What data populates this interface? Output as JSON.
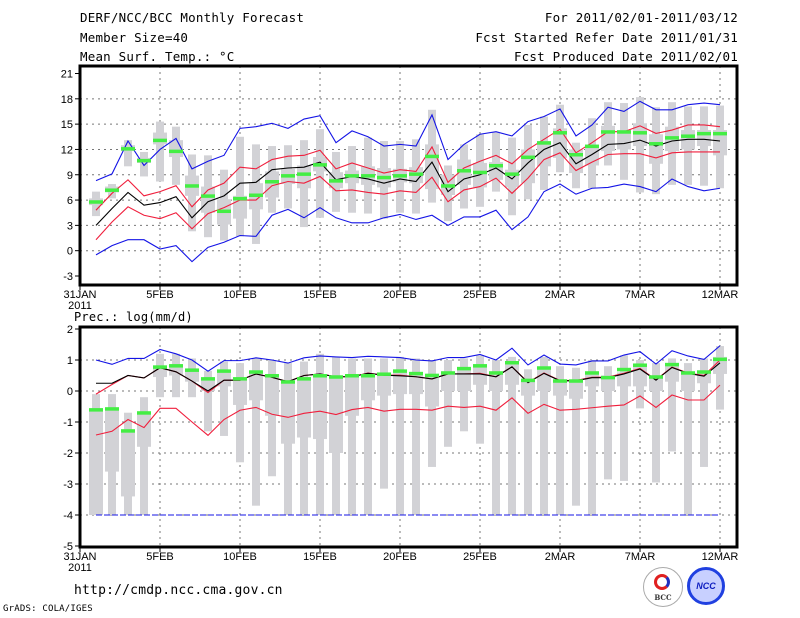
{
  "header": {
    "title": "DERF/NCC/BCC Monthly Forecast",
    "member_size": "Member Size=40",
    "variable": "Mean Surf. Temp.: °C",
    "period": "For 2011/02/01-2011/03/12",
    "start_date": "Fcst Started Refer Date 2011/01/31",
    "produced_date": "Fcst Produced Date 2011/02/01"
  },
  "footer": {
    "url": "http://cmdp.ncc.cma.gov.cn",
    "credit": "GrADS: COLA/IGES",
    "logo_bcc": "BCC",
    "logo_ncc": "NCC"
  },
  "colors": {
    "box": "#d2d2d6",
    "obs": "#44ee44",
    "red": "#f01e3c",
    "blue": "#1414e6",
    "black": "#000000",
    "grid": "#777777"
  },
  "chart_data": [
    {
      "type": "line",
      "title": "Mean Surf. Temp.: °C",
      "xlabel": "",
      "ylabel": "",
      "x_ticks": [
        "31JAN",
        "5FEB",
        "10FEB",
        "15FEB",
        "20FEB",
        "25FEB",
        "2MAR",
        "7MAR",
        "12MAR"
      ],
      "x_year": "2011",
      "ylim": [
        -3,
        21
      ],
      "y_ticks": [
        "-3",
        "0",
        "3",
        "6",
        "9",
        "12",
        "15",
        "18",
        "21"
      ],
      "y_tick_values": [
        -3,
        0,
        3,
        6,
        9,
        12,
        15,
        18,
        21
      ],
      "grid": true,
      "x_days": "1..40 (days after 31JAN)",
      "series": [
        {
          "name": "blue-max",
          "values": [
            8.3,
            9.1,
            13.0,
            10.1,
            12.0,
            13.3,
            9.7,
            10.6,
            11.3,
            14.5,
            14.7,
            15.1,
            14.5,
            15.6,
            16.0,
            12.8,
            14.2,
            13.5,
            12.4,
            12.6,
            12.4,
            16.1,
            10.8,
            12.6,
            13.8,
            14.1,
            13.6,
            15.3,
            15.9,
            16.8,
            13.6,
            14.9,
            17.0,
            16.5,
            17.7,
            16.7,
            16.7,
            17.3,
            17.5,
            17.3
          ]
        },
        {
          "name": "blue-min",
          "values": [
            -0.5,
            0.6,
            1.3,
            1.3,
            0.2,
            0.6,
            -1.3,
            0.4,
            1.0,
            1.8,
            1.7,
            4.2,
            4.9,
            3.9,
            5.1,
            3.9,
            3.3,
            3.3,
            3.9,
            4.3,
            3.7,
            4.2,
            3.0,
            4.0,
            4.0,
            4.8,
            2.5,
            4.0,
            7.0,
            7.9,
            6.7,
            7.4,
            7.5,
            7.9,
            7.6,
            7.0,
            8.5,
            7.6,
            7.1,
            7.4
          ]
        },
        {
          "name": "red-upper",
          "values": [
            4.8,
            6.8,
            8.4,
            6.5,
            7.0,
            7.7,
            5.2,
            7.2,
            8.0,
            9.9,
            9.7,
            10.8,
            11.2,
            11.3,
            11.9,
            9.7,
            10.4,
            9.8,
            9.2,
            9.6,
            9.4,
            12.3,
            8.1,
            9.8,
            10.6,
            11.3,
            10.3,
            12.0,
            13.2,
            14.4,
            11.6,
            12.8,
            14.1,
            14.1,
            14.8,
            13.9,
            14.3,
            14.9,
            14.9,
            14.7
          ]
        },
        {
          "name": "black-mean",
          "values": [
            3.0,
            5.0,
            6.9,
            5.4,
            5.7,
            6.4,
            3.9,
            5.8,
            6.5,
            8.0,
            8.1,
            9.6,
            9.8,
            9.9,
            10.5,
            8.4,
            8.8,
            8.5,
            8.0,
            8.5,
            8.2,
            10.5,
            7.0,
            8.5,
            9.0,
            9.8,
            8.5,
            10.4,
            12.0,
            12.8,
            10.3,
            11.4,
            12.6,
            12.7,
            13.1,
            12.4,
            13.0,
            13.2,
            13.2,
            13.0
          ]
        },
        {
          "name": "red-lower",
          "values": [
            1.3,
            3.4,
            5.2,
            4.2,
            3.8,
            4.5,
            2.6,
            4.4,
            5.1,
            6.0,
            6.0,
            7.7,
            8.2,
            8.0,
            8.8,
            7.1,
            7.2,
            6.9,
            6.7,
            7.1,
            6.9,
            8.7,
            5.8,
            7.2,
            7.6,
            8.6,
            6.8,
            8.6,
            10.8,
            11.6,
            9.5,
            10.5,
            11.4,
            11.5,
            11.5,
            11.0,
            11.6,
            11.7,
            11.7,
            11.7
          ]
        },
        {
          "name": "green-marker",
          "values": [
            5.8,
            7.2,
            12.1,
            10.7,
            13.1,
            11.8,
            7.7,
            6.5,
            4.7,
            6.2,
            6.6,
            8.2,
            8.9,
            9.1,
            10.2,
            8.3,
            8.9,
            8.9,
            8.7,
            8.9,
            9.1,
            11.2,
            7.7,
            9.5,
            9.3,
            10.1,
            9.1,
            11.1,
            12.8,
            14.0,
            11.4,
            12.4,
            14.1,
            14.1,
            14.0,
            12.7,
            13.4,
            13.6,
            13.9,
            13.9
          ]
        }
      ],
      "boxes": [
        [
          4.1,
          5.4,
          6.2,
          7.0
        ],
        [
          6.2,
          6.9,
          7.6,
          7.9
        ],
        [
          10.0,
          11.8,
          12.5,
          13.1
        ],
        [
          8.8,
          10.4,
          11.0,
          11.7
        ],
        [
          8.2,
          12.6,
          14.0,
          15.3
        ],
        [
          7.8,
          11.1,
          13.1,
          14.7
        ],
        [
          2.3,
          6.5,
          8.9,
          11.4
        ],
        [
          1.6,
          4.5,
          7.6,
          11.3
        ],
        [
          1.2,
          3.1,
          6.1,
          9.6
        ],
        [
          1.7,
          3.8,
          6.5,
          13.5
        ],
        [
          0.8,
          4.9,
          8.0,
          12.6
        ],
        [
          4.5,
          6.3,
          9.4,
          12.4
        ],
        [
          5.0,
          7.9,
          9.7,
          12.5
        ],
        [
          2.8,
          7.4,
          10.1,
          13.1
        ],
        [
          3.9,
          9.4,
          11.1,
          14.4
        ],
        [
          4.6,
          7.4,
          9.3,
          11.7
        ],
        [
          4.5,
          8.0,
          9.5,
          12.4
        ],
        [
          4.4,
          7.8,
          10.0,
          13.4
        ],
        [
          3.8,
          7.5,
          9.8,
          13.0
        ],
        [
          4.5,
          8.1,
          9.7,
          13.0
        ],
        [
          4.4,
          8.0,
          9.9,
          13.2
        ],
        [
          5.7,
          7.3,
          12.6,
          16.7
        ],
        [
          3.5,
          6.6,
          9.0,
          10.1
        ],
        [
          5.0,
          7.8,
          10.8,
          12.6
        ],
        [
          5.2,
          7.5,
          10.4,
          13.8
        ],
        [
          7.0,
          8.4,
          10.5,
          14.0
        ],
        [
          4.2,
          7.5,
          9.6,
          13.4
        ],
        [
          6.1,
          8.0,
          12.0,
          14.9
        ],
        [
          7.2,
          10.0,
          13.0,
          15.9
        ],
        [
          9.3,
          11.0,
          14.5,
          17.3
        ],
        [
          7.4,
          9.2,
          12.0,
          12.8
        ],
        [
          7.4,
          10.1,
          12.5,
          15.7
        ],
        [
          10.1,
          11.8,
          14.8,
          17.6
        ],
        [
          8.4,
          12.0,
          14.3,
          17.5
        ],
        [
          6.9,
          12.4,
          15.1,
          18.2
        ],
        [
          6.7,
          10.3,
          13.8,
          17.0
        ],
        [
          7.8,
          11.8,
          14.7,
          17.6
        ],
        [
          7.8,
          12.0,
          14.3,
          17.1
        ],
        [
          7.7,
          12.4,
          14.3,
          17.1
        ],
        [
          7.4,
          11.3,
          14.3,
          17.2
        ]
      ]
    },
    {
      "type": "line",
      "title": "Prec.: log(mm/d)",
      "xlabel": "",
      "ylabel": "",
      "x_ticks": [
        "31JAN",
        "5FEB",
        "10FEB",
        "15FEB",
        "20FEB",
        "25FEB",
        "2MAR",
        "7MAR",
        "12MAR"
      ],
      "x_year": "2011",
      "ylim": [
        -5,
        2
      ],
      "y_ticks": [
        "-5",
        "-4",
        "-3",
        "-2",
        "-1",
        "0",
        "1",
        "2"
      ],
      "y_tick_values": [
        -5,
        -4,
        -3,
        -2,
        -1,
        0,
        1,
        2
      ],
      "grid": true,
      "series": [
        {
          "name": "blue-max",
          "values": [
            1.0,
            0.86,
            1.05,
            1.05,
            1.34,
            1.2,
            1.0,
            0.64,
            0.98,
            0.98,
            1.07,
            1.0,
            0.9,
            1.07,
            1.13,
            1.1,
            1.08,
            1.12,
            1.1,
            1.08,
            1.0,
            0.97,
            1.08,
            1.08,
            1.18,
            1.0,
            1.38,
            0.84,
            1.16,
            0.87,
            0.84,
            0.97,
            0.97,
            1.16,
            1.27,
            0.87,
            1.3,
            1.13,
            1.02,
            1.46
          ]
        },
        {
          "name": "blue-min",
          "values": [
            -4,
            -4,
            -4,
            -4,
            -4,
            -4,
            -4,
            -4,
            -4,
            -4,
            -4,
            -4,
            -4,
            -4,
            -4,
            -4,
            -4,
            -4,
            -4,
            -4,
            -4,
            -4,
            -4,
            -4,
            -4,
            -4,
            -4,
            -4,
            -4,
            -4,
            -4,
            -4,
            -4,
            -4,
            -4,
            -4,
            -4,
            -4,
            -4,
            -4
          ]
        },
        {
          "name": "red-upper",
          "values": [
            -0.1,
            0.21,
            0.5,
            0.42,
            0.75,
            0.62,
            0.32,
            -0.05,
            0.35,
            0.35,
            0.55,
            0.44,
            0.3,
            0.5,
            0.55,
            0.46,
            0.46,
            0.58,
            0.51,
            0.51,
            0.46,
            0.39,
            0.55,
            0.55,
            0.57,
            0.46,
            0.78,
            0.28,
            0.58,
            0.34,
            0.34,
            0.44,
            0.45,
            0.57,
            0.73,
            0.36,
            0.77,
            0.58,
            0.5,
            1.0
          ]
        },
        {
          "name": "black-mean",
          "values": [
            0.25,
            0.25,
            0.5,
            0.42,
            0.75,
            0.62,
            0.32,
            0.0,
            0.35,
            0.35,
            0.55,
            0.44,
            0.3,
            0.5,
            0.55,
            0.46,
            0.46,
            0.57,
            0.51,
            0.49,
            0.46,
            0.39,
            0.55,
            0.55,
            0.55,
            0.46,
            0.78,
            0.27,
            0.57,
            0.33,
            0.33,
            0.43,
            0.43,
            0.55,
            0.71,
            0.35,
            0.76,
            0.57,
            0.48,
            0.91
          ]
        },
        {
          "name": "red-lower",
          "values": [
            -1.42,
            -1.3,
            -0.92,
            -1.18,
            -0.56,
            -0.56,
            -1.0,
            -1.43,
            -0.92,
            -0.62,
            -0.53,
            -0.75,
            -0.85,
            -0.72,
            -0.65,
            -0.76,
            -0.6,
            -0.53,
            -0.65,
            -0.59,
            -0.59,
            -0.62,
            -0.49,
            -0.53,
            -0.49,
            -0.62,
            -0.22,
            -0.72,
            -0.43,
            -0.62,
            -0.59,
            -0.54,
            -0.49,
            -0.45,
            -0.16,
            -0.53,
            -0.13,
            -0.29,
            -0.29,
            0.19
          ]
        },
        {
          "name": "green-marker",
          "values": [
            -0.6,
            -0.57,
            -1.28,
            -0.7,
            0.78,
            0.82,
            0.68,
            0.4,
            0.65,
            0.4,
            0.62,
            0.5,
            0.3,
            0.4,
            0.5,
            0.46,
            0.5,
            0.5,
            0.55,
            0.65,
            0.57,
            0.51,
            0.59,
            0.73,
            0.82,
            0.59,
            0.92,
            0.35,
            0.75,
            0.33,
            0.33,
            0.59,
            0.44,
            0.7,
            0.84,
            0.46,
            0.86,
            0.59,
            0.62,
            1.03
          ]
        }
      ],
      "boxes": [
        [
          -4,
          -4,
          -0.6,
          -0.1
        ],
        [
          -4,
          -2.6,
          -0.6,
          -0.1
        ],
        [
          -4,
          -3.4,
          -1.3,
          -0.7
        ],
        [
          -4,
          -1.8,
          -0.7,
          -0.2
        ],
        [
          -0.2,
          0.45,
          0.75,
          1.2
        ],
        [
          -0.2,
          0.5,
          0.85,
          1.2
        ],
        [
          -0.2,
          0.3,
          0.7,
          1.05
        ],
        [
          -1.3,
          0.0,
          0.4,
          0.65
        ],
        [
          -1.45,
          0.15,
          0.6,
          0.95
        ],
        [
          -2.3,
          -0.45,
          0.4,
          0.9
        ],
        [
          -3.7,
          -0.3,
          0.6,
          1.05
        ],
        [
          -2.75,
          -0.8,
          0.5,
          1.0
        ],
        [
          -4,
          -1.7,
          0.3,
          0.9
        ],
        [
          -4,
          -1.5,
          0.45,
          0.95
        ],
        [
          -4,
          -1.55,
          0.5,
          1.2
        ],
        [
          -4,
          -2.0,
          0.45,
          1.1
        ],
        [
          -4,
          -0.8,
          0.5,
          1.05
        ],
        [
          -4,
          -0.3,
          0.55,
          1.05
        ],
        [
          -3.15,
          -0.15,
          0.55,
          1.05
        ],
        [
          -4,
          -0.1,
          0.65,
          1.1
        ],
        [
          -4,
          -0.1,
          0.6,
          1.05
        ],
        [
          -2.45,
          -0.5,
          0.55,
          1.0
        ],
        [
          -1.8,
          0.0,
          0.6,
          1.0
        ],
        [
          -1.3,
          0.0,
          0.7,
          1.05
        ],
        [
          -1.7,
          0.2,
          0.8,
          1.15
        ],
        [
          -4,
          0.0,
          0.6,
          1.0
        ],
        [
          -4,
          0.2,
          0.9,
          1.1
        ],
        [
          -4,
          -0.15,
          0.4,
          0.7
        ],
        [
          -4,
          0.0,
          0.7,
          1.1
        ],
        [
          -4,
          -0.15,
          0.35,
          0.8
        ],
        [
          -3.7,
          -0.25,
          0.35,
          0.75
        ],
        [
          -4,
          0.15,
          0.6,
          1.0
        ],
        [
          -2.85,
          0.0,
          0.5,
          0.8
        ],
        [
          -2.9,
          0.15,
          0.6,
          1.15
        ],
        [
          -0.56,
          0.15,
          0.85,
          1.0
        ],
        [
          -2.95,
          0.0,
          0.5,
          0.9
        ],
        [
          -1.95,
          0.3,
          0.85,
          1.05
        ],
        [
          -4,
          0.0,
          0.6,
          0.9
        ],
        [
          -2.45,
          0.25,
          0.6,
          1.05
        ],
        [
          -0.6,
          0.55,
          1.1,
          1.45
        ]
      ]
    }
  ]
}
